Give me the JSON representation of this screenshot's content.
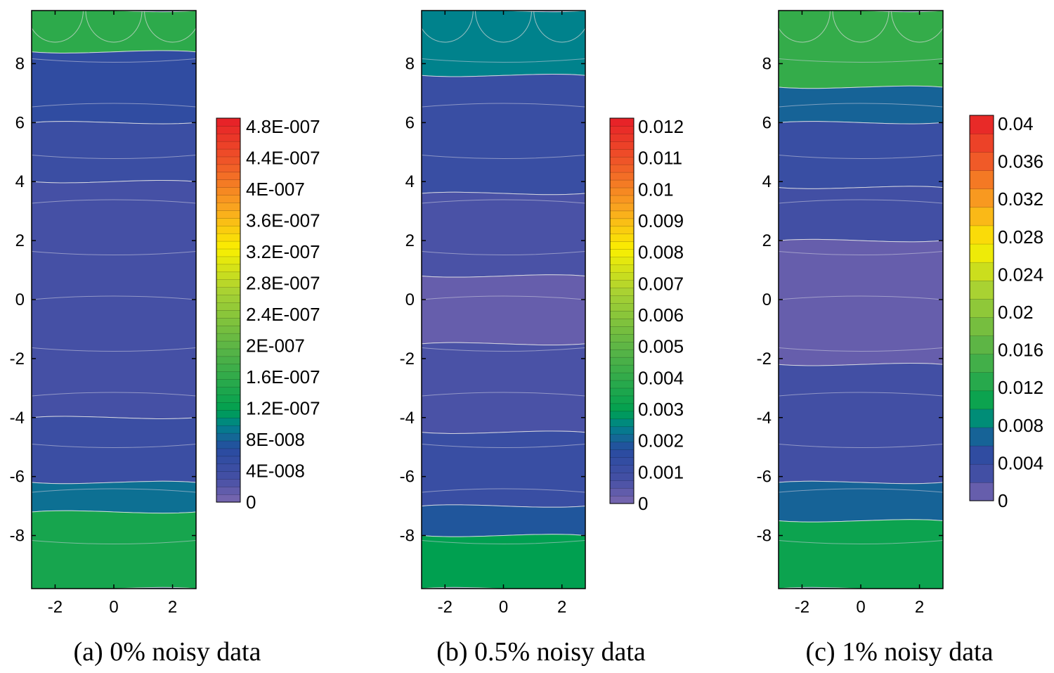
{
  "chart_data": [
    {
      "type": "heatmap",
      "panel": "a",
      "caption": "(a) 0% noisy data",
      "x_ticks": [
        "-2",
        "0",
        "2"
      ],
      "x_tick_values": [
        -2,
        0,
        2
      ],
      "y_ticks": [
        "8",
        "6",
        "4",
        "2",
        "0",
        "-2",
        "-4",
        "-6",
        "-8"
      ],
      "y_tick_values": [
        8,
        6,
        4,
        2,
        0,
        -2,
        -4,
        -6,
        -8
      ],
      "xlim": [
        -2.8,
        2.8
      ],
      "ylim": [
        -9.8,
        9.8
      ],
      "colorbar": {
        "labels": [
          "4.8E-007",
          "4.4E-007",
          "4E-007",
          "3.6E-007",
          "3.2E-007",
          "2.8E-007",
          "2.4E-007",
          "2E-007",
          "1.6E-007",
          "1.2E-007",
          "8E-008",
          "4E-008",
          "0"
        ],
        "min": 0,
        "max": 5e-07,
        "levels": 50
      },
      "bands": [
        {
          "y_top": 9.8,
          "y_bottom": 8.4,
          "value": 1.6e-07,
          "description": "top edge"
        },
        {
          "y_top": 8.4,
          "y_bottom": 6.0,
          "value": 6e-08
        },
        {
          "y_top": 6.0,
          "y_bottom": 4.0,
          "value": 4.5e-08
        },
        {
          "y_top": 4.0,
          "y_bottom": -4.0,
          "value": 3.2e-08
        },
        {
          "y_top": -4.0,
          "y_bottom": -6.2,
          "value": 4.5e-08
        },
        {
          "y_top": -6.2,
          "y_bottom": -7.2,
          "value": 9e-08
        },
        {
          "y_top": -7.2,
          "y_bottom": -9.8,
          "value": 1.4e-07
        }
      ]
    },
    {
      "type": "heatmap",
      "panel": "b",
      "caption": "(b) 0.5% noisy data",
      "x_ticks": [
        "-2",
        "0",
        "2"
      ],
      "x_tick_values": [
        -2,
        0,
        2
      ],
      "y_ticks": [
        "8",
        "6",
        "4",
        "2",
        "0",
        "-2",
        "-4",
        "-6",
        "-8"
      ],
      "y_tick_values": [
        8,
        6,
        4,
        2,
        0,
        -2,
        -4,
        -6,
        -8
      ],
      "xlim": [
        -2.8,
        2.8
      ],
      "ylim": [
        -9.8,
        9.8
      ],
      "colorbar": {
        "labels": [
          "0.012",
          "0.011",
          "0.01",
          "0.009",
          "0.008",
          "0.007",
          "0.006",
          "0.005",
          "0.004",
          "0.003",
          "0.002",
          "0.001",
          "0"
        ],
        "min": 0,
        "max": 0.0125,
        "levels": 50
      },
      "bands": [
        {
          "y_top": 9.8,
          "y_bottom": 7.6,
          "value": 0.0025
        },
        {
          "y_top": 7.6,
          "y_bottom": 3.6,
          "value": 0.0012
        },
        {
          "y_top": 3.6,
          "y_bottom": 0.8,
          "value": 0.0007
        },
        {
          "y_top": 0.8,
          "y_bottom": -1.5,
          "value": 0.0003
        },
        {
          "y_top": -1.5,
          "y_bottom": -4.5,
          "value": 0.0007
        },
        {
          "y_top": -4.5,
          "y_bottom": -7.0,
          "value": 0.0012
        },
        {
          "y_top": -7.0,
          "y_bottom": -8.0,
          "value": 0.0019
        },
        {
          "y_top": -8.0,
          "y_bottom": -9.8,
          "value": 0.003
        }
      ]
    },
    {
      "type": "heatmap",
      "panel": "c",
      "caption": "(c) 1% noisy data",
      "x_ticks": [
        "-2",
        "0",
        "2"
      ],
      "x_tick_values": [
        -2,
        0,
        2
      ],
      "y_ticks": [
        "8",
        "6",
        "4",
        "2",
        "0",
        "-2",
        "-4",
        "-6",
        "-8"
      ],
      "y_tick_values": [
        8,
        6,
        4,
        2,
        0,
        -2,
        -4,
        -6,
        -8
      ],
      "xlim": [
        -2.8,
        2.8
      ],
      "ylim": [
        -9.8,
        9.8
      ],
      "colorbar": {
        "labels": [
          "0.04",
          "0.036",
          "0.032",
          "0.028",
          "0.024",
          "0.02",
          "0.016",
          "0.012",
          "0.008",
          "0.004",
          "0"
        ],
        "min": 0,
        "max": 0.042,
        "levels": 21
      },
      "bands": [
        {
          "y_top": 9.8,
          "y_bottom": 7.2,
          "value": 0.014
        },
        {
          "y_top": 7.2,
          "y_bottom": 6.0,
          "value": 0.007
        },
        {
          "y_top": 6.0,
          "y_bottom": 3.8,
          "value": 0.004
        },
        {
          "y_top": 3.8,
          "y_bottom": 2.0,
          "value": 0.003
        },
        {
          "y_top": 2.0,
          "y_bottom": -2.2,
          "value": 0.001
        },
        {
          "y_top": -2.2,
          "y_bottom": -6.2,
          "value": 0.003
        },
        {
          "y_top": -6.2,
          "y_bottom": -7.5,
          "value": 0.007
        },
        {
          "y_top": -7.5,
          "y_bottom": -9.8,
          "value": 0.011
        }
      ]
    }
  ]
}
